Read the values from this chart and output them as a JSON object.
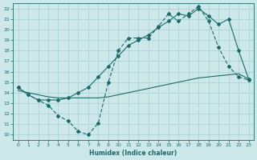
{
  "xlabel": "Humidex (Indice chaleur)",
  "bg_color": "#cce8e8",
  "grid_color": "#aacece",
  "line_color": "#1a6b6b",
  "xlim": [
    -0.5,
    23.5
  ],
  "ylim": [
    9.5,
    22.5
  ],
  "xticks": [
    0,
    1,
    2,
    3,
    4,
    5,
    6,
    7,
    8,
    9,
    10,
    11,
    12,
    13,
    14,
    15,
    16,
    17,
    18,
    19,
    20,
    21,
    22,
    23
  ],
  "yticks": [
    10,
    11,
    12,
    13,
    14,
    15,
    16,
    17,
    18,
    19,
    20,
    21,
    22
  ],
  "line1_x": [
    0,
    1,
    2,
    3,
    4,
    5,
    6,
    7,
    8,
    9,
    10,
    11,
    12,
    13,
    14,
    15,
    16,
    17,
    18,
    19,
    20,
    21,
    22,
    23
  ],
  "line1_y": [
    14.5,
    13.8,
    13.3,
    12.8,
    11.8,
    11.3,
    10.3,
    10.0,
    11.1,
    15.0,
    18.0,
    19.2,
    19.2,
    19.2,
    20.3,
    21.5,
    20.8,
    21.5,
    22.2,
    20.8,
    18.3,
    16.5,
    15.5,
    15.2
  ],
  "line2_x": [
    0,
    1,
    2,
    3,
    4,
    5,
    6,
    7,
    8,
    9,
    10,
    11,
    12,
    13,
    14,
    15,
    16,
    17,
    18,
    19,
    20,
    21,
    22,
    23
  ],
  "line2_y": [
    14.2,
    14.0,
    13.8,
    13.6,
    13.5,
    13.5,
    13.5,
    13.5,
    13.5,
    13.6,
    13.8,
    14.0,
    14.2,
    14.4,
    14.6,
    14.8,
    15.0,
    15.2,
    15.4,
    15.5,
    15.6,
    15.7,
    15.8,
    15.3
  ],
  "line3_x": [
    0,
    1,
    2,
    3,
    4,
    5,
    6,
    7,
    8,
    9,
    10,
    11,
    12,
    13,
    14,
    15,
    16,
    17,
    18,
    19,
    20,
    21,
    22,
    23
  ],
  "line3_y": [
    14.5,
    13.8,
    13.3,
    13.3,
    13.3,
    13.5,
    14.0,
    14.5,
    15.5,
    16.5,
    17.5,
    18.5,
    19.0,
    19.5,
    20.2,
    20.8,
    21.5,
    21.3,
    22.0,
    21.3,
    20.5,
    21.0,
    18.0,
    15.3
  ]
}
